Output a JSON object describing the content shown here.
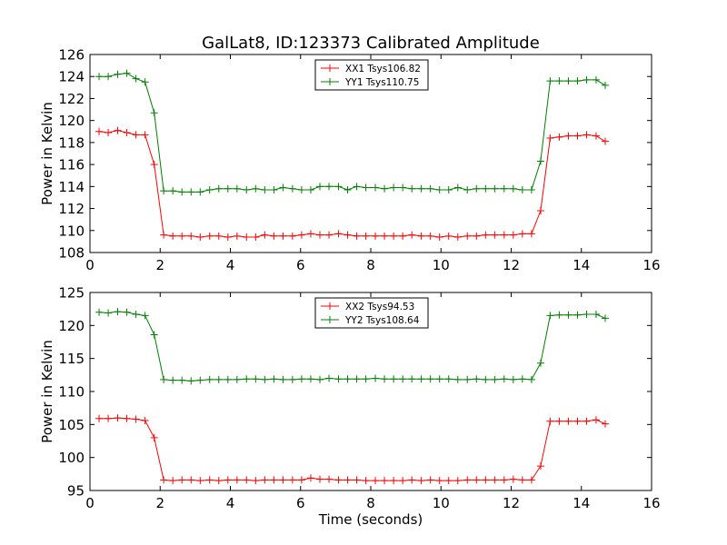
{
  "chart_data": [
    {
      "type": "line",
      "title": "GalLat8, ID:123373 Calibrated Amplitude",
      "xlabel": "",
      "ylabel": "Power in Kelvin",
      "xlim": [
        0,
        16
      ],
      "ylim": [
        108,
        126
      ],
      "xticks": [
        0,
        2,
        4,
        6,
        8,
        10,
        12,
        14,
        16
      ],
      "yticks": [
        108,
        110,
        112,
        114,
        116,
        118,
        120,
        122,
        124,
        126
      ],
      "grid": false,
      "legend_position": "top-center",
      "x": [
        0.26,
        0.52,
        0.79,
        1.05,
        1.31,
        1.57,
        1.83,
        2.1,
        2.36,
        2.62,
        2.88,
        3.14,
        3.41,
        3.67,
        3.93,
        4.19,
        4.46,
        4.72,
        4.98,
        5.24,
        5.5,
        5.77,
        6.03,
        6.29,
        6.55,
        6.81,
        7.08,
        7.34,
        7.6,
        7.86,
        8.13,
        8.39,
        8.65,
        8.91,
        9.17,
        9.44,
        9.7,
        9.96,
        10.22,
        10.48,
        10.75,
        11.01,
        11.27,
        11.53,
        11.8,
        12.06,
        12.32,
        12.58,
        12.84,
        13.11,
        13.37,
        13.63,
        13.89,
        14.15,
        14.42,
        14.68
      ],
      "series": [
        {
          "name": "XX1 Tsys106.82",
          "color": "#ff0000",
          "values": [
            119.0,
            118.9,
            119.1,
            118.9,
            118.7,
            118.7,
            116.0,
            109.6,
            109.5,
            109.5,
            109.5,
            109.4,
            109.5,
            109.5,
            109.4,
            109.5,
            109.4,
            109.4,
            109.6,
            109.5,
            109.5,
            109.5,
            109.6,
            109.7,
            109.6,
            109.6,
            109.7,
            109.6,
            109.5,
            109.5,
            109.5,
            109.5,
            109.5,
            109.5,
            109.6,
            109.5,
            109.5,
            109.4,
            109.5,
            109.4,
            109.5,
            109.5,
            109.6,
            109.6,
            109.6,
            109.6,
            109.7,
            109.7,
            111.8,
            118.4,
            118.5,
            118.6,
            118.6,
            118.7,
            118.6,
            118.1
          ]
        },
        {
          "name": "YY1 Tsys110.75",
          "color": "#008000",
          "values": [
            124.0,
            124.0,
            124.2,
            124.3,
            123.8,
            123.5,
            120.7,
            113.6,
            113.6,
            113.5,
            113.5,
            113.5,
            113.7,
            113.8,
            113.8,
            113.8,
            113.7,
            113.8,
            113.7,
            113.7,
            113.9,
            113.8,
            113.7,
            113.7,
            114.0,
            114.0,
            114.0,
            113.7,
            114.0,
            113.9,
            113.9,
            113.8,
            113.9,
            113.9,
            113.8,
            113.8,
            113.8,
            113.7,
            113.7,
            113.9,
            113.7,
            113.8,
            113.8,
            113.8,
            113.8,
            113.8,
            113.7,
            113.7,
            116.3,
            123.6,
            123.6,
            123.6,
            123.6,
            123.7,
            123.7,
            123.2
          ]
        }
      ]
    },
    {
      "type": "line",
      "title": "",
      "xlabel": "Time (seconds)",
      "ylabel": "Power in Kelvin",
      "xlim": [
        0,
        16
      ],
      "ylim": [
        95,
        125
      ],
      "xticks": [
        0,
        2,
        4,
        6,
        8,
        10,
        12,
        14,
        16
      ],
      "yticks": [
        95,
        100,
        105,
        110,
        115,
        120,
        125
      ],
      "grid": false,
      "legend_position": "top-center",
      "x": [
        0.26,
        0.52,
        0.79,
        1.05,
        1.31,
        1.57,
        1.83,
        2.1,
        2.36,
        2.62,
        2.88,
        3.14,
        3.41,
        3.67,
        3.93,
        4.19,
        4.46,
        4.72,
        4.98,
        5.24,
        5.5,
        5.77,
        6.03,
        6.29,
        6.55,
        6.81,
        7.08,
        7.34,
        7.6,
        7.86,
        8.13,
        8.39,
        8.65,
        8.91,
        9.17,
        9.44,
        9.7,
        9.96,
        10.22,
        10.48,
        10.75,
        11.01,
        11.27,
        11.53,
        11.8,
        12.06,
        12.32,
        12.58,
        12.84,
        13.11,
        13.37,
        13.63,
        13.89,
        14.15,
        14.42,
        14.68
      ],
      "series": [
        {
          "name": "XX2 Tsys94.53",
          "color": "#ff0000",
          "values": [
            105.9,
            105.9,
            106.0,
            105.9,
            105.8,
            105.6,
            103.0,
            96.6,
            96.5,
            96.6,
            96.6,
            96.5,
            96.6,
            96.5,
            96.6,
            96.6,
            96.6,
            96.5,
            96.6,
            96.6,
            96.6,
            96.6,
            96.6,
            96.9,
            96.7,
            96.7,
            96.6,
            96.6,
            96.6,
            96.5,
            96.5,
            96.5,
            96.5,
            96.5,
            96.6,
            96.5,
            96.6,
            96.5,
            96.5,
            96.5,
            96.6,
            96.6,
            96.6,
            96.6,
            96.6,
            96.7,
            96.6,
            96.6,
            98.7,
            105.5,
            105.5,
            105.5,
            105.5,
            105.5,
            105.7,
            105.1
          ]
        },
        {
          "name": "YY2 Tsys108.64",
          "color": "#008000",
          "values": [
            122.0,
            121.9,
            122.1,
            122.0,
            121.7,
            121.5,
            118.6,
            111.8,
            111.7,
            111.7,
            111.6,
            111.7,
            111.8,
            111.8,
            111.8,
            111.8,
            111.9,
            111.9,
            111.8,
            111.9,
            111.8,
            111.8,
            111.9,
            111.9,
            111.8,
            112.0,
            111.9,
            111.9,
            111.9,
            111.9,
            112.0,
            111.9,
            111.9,
            111.9,
            111.9,
            111.9,
            111.9,
            111.9,
            111.9,
            111.8,
            111.8,
            111.9,
            111.8,
            111.8,
            111.9,
            111.8,
            111.9,
            111.8,
            114.3,
            121.5,
            121.6,
            121.6,
            121.6,
            121.7,
            121.7,
            121.1
          ]
        }
      ]
    }
  ]
}
